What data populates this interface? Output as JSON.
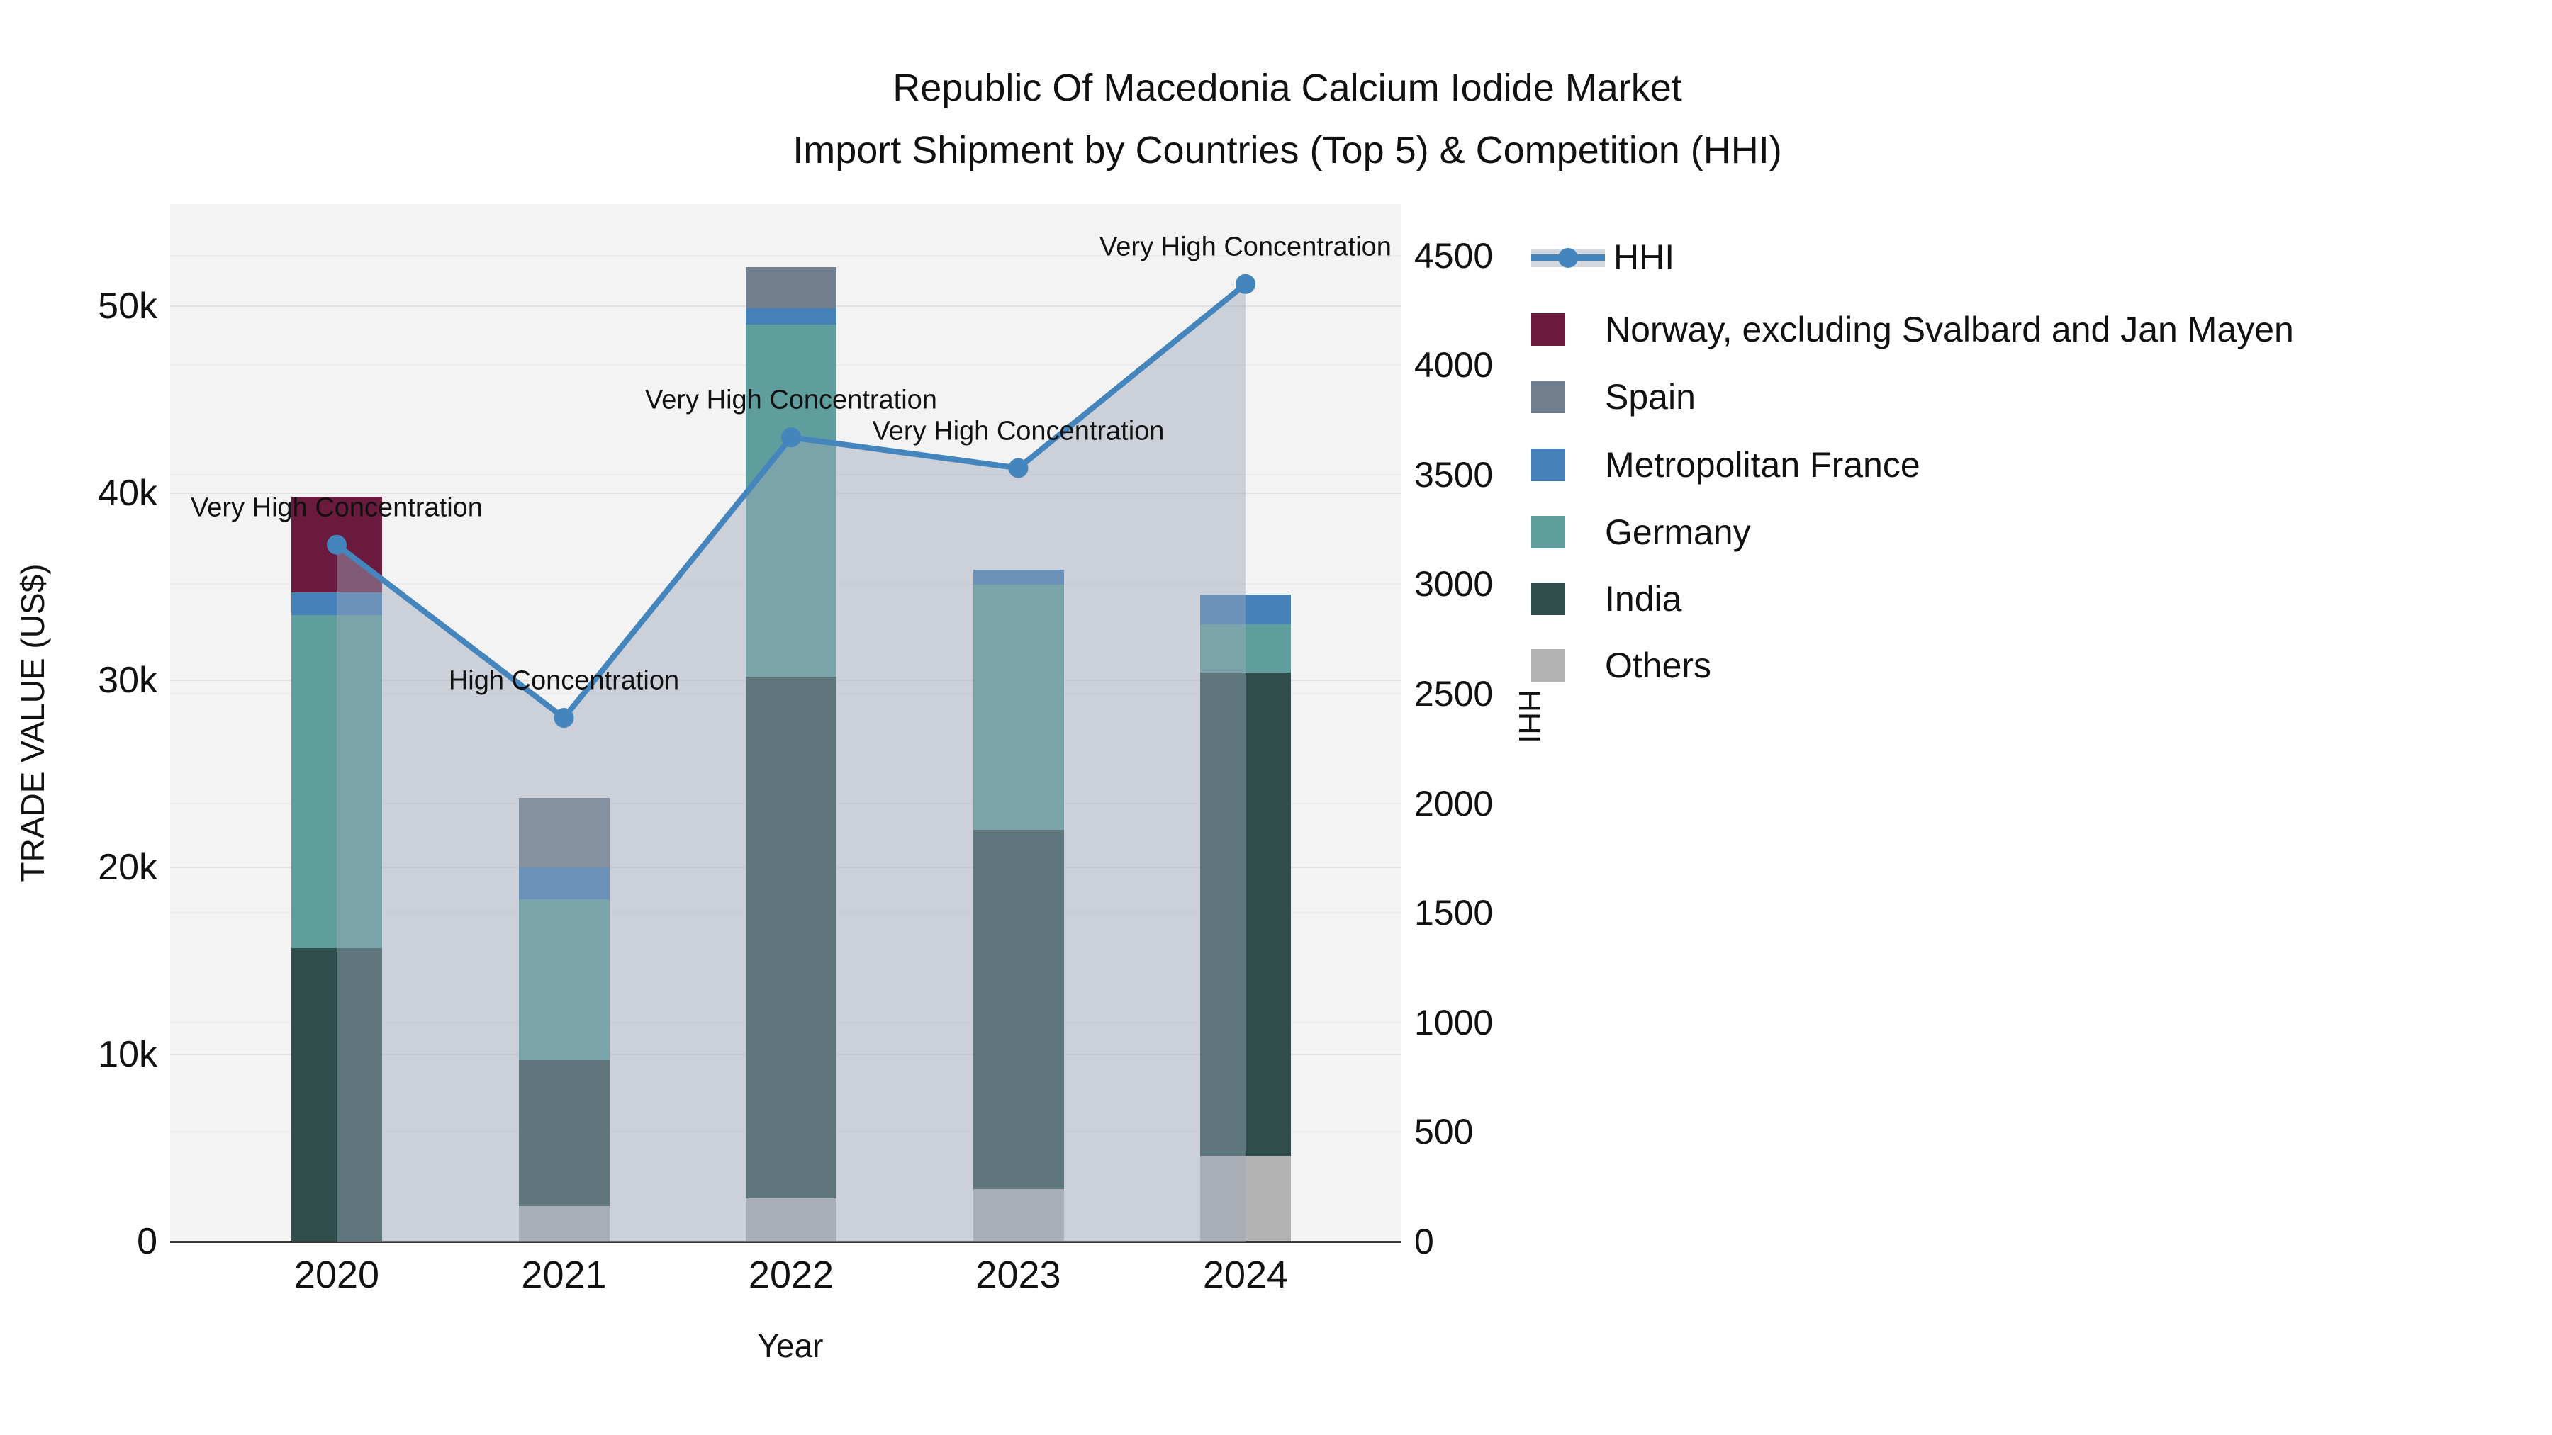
{
  "title": {
    "line1": "Republic Of Macedonia Calcium Iodide Market",
    "line2": "Import Shipment by Countries (Top 5) & Competition (HHI)"
  },
  "axes": {
    "left": {
      "title": "TRADE VALUE (US$)",
      "tick_labels": [
        "0",
        "10k",
        "20k",
        "30k",
        "40k",
        "50k"
      ],
      "tick_values": [
        0,
        10000,
        20000,
        30000,
        40000,
        50000
      ],
      "range": [
        0,
        55400
      ]
    },
    "right": {
      "title": "HHI",
      "tick_values": [
        0,
        500,
        1000,
        1500,
        2000,
        2500,
        3000,
        3500,
        4000,
        4500
      ],
      "range": [
        0,
        4735
      ]
    },
    "x": {
      "title": "Year",
      "tick_labels": [
        "2020",
        "2021",
        "2022",
        "2023",
        "2024"
      ]
    }
  },
  "legend": {
    "items": [
      {
        "label": "HHI",
        "type": "line"
      },
      {
        "label": "Norway, excluding Svalbard and Jan Mayen",
        "type": "box",
        "color": "#6a1a3c"
      },
      {
        "label": "Spain",
        "type": "box",
        "color": "#717e8d"
      },
      {
        "label": "Metropolitan France",
        "type": "box",
        "color": "#4580b8"
      },
      {
        "label": "Germany",
        "type": "box",
        "color": "#5f9e9d"
      },
      {
        "label": "India",
        "type": "box",
        "color": "#2e4d4b"
      },
      {
        "label": "Others",
        "type": "box",
        "color": "#b3b3b3"
      }
    ]
  },
  "colors": {
    "hhi_line": "#4585bd",
    "hhi_fill": "rgba(157,168,186,0.45)",
    "plot_bg": "#f3f3f3",
    "annotation_text": "#111111"
  },
  "chart_data": {
    "type": "bar",
    "subtype": "stacked-bars-with-line-overlay",
    "categories": [
      "2020",
      "2021",
      "2022",
      "2023",
      "2024"
    ],
    "bar_value_unit": "US$ trade value",
    "series": [
      {
        "name": "Norway, excluding Svalbard and Jan Mayen",
        "color": "#6a1a3c",
        "values": [
          5100,
          0,
          0,
          0,
          0
        ]
      },
      {
        "name": "Spain",
        "color": "#717e8d",
        "values": [
          0,
          3700,
          2200,
          0,
          0
        ]
      },
      {
        "name": "Metropolitan France",
        "color": "#4580b8",
        "values": [
          1200,
          1700,
          900,
          800,
          1600
        ]
      },
      {
        "name": "Germany",
        "color": "#5f9e9d",
        "values": [
          17800,
          8600,
          18800,
          13100,
          2600
        ]
      },
      {
        "name": "India",
        "color": "#2e4d4b",
        "values": [
          15700,
          7800,
          27900,
          19200,
          25800
        ]
      },
      {
        "name": "Others",
        "color": "#b3b3b3",
        "values": [
          0,
          1900,
          2300,
          2800,
          4600
        ]
      }
    ],
    "stack_order_bottom_to_top": [
      "Others",
      "India",
      "Germany",
      "Metropolitan France",
      "Spain",
      "Norway, excluding Svalbard and Jan Mayen"
    ],
    "line_series": {
      "name": "HHI",
      "axis": "right",
      "values": [
        3180,
        2390,
        3670,
        3530,
        4370
      ],
      "fill": "tozeroy"
    },
    "annotations": [
      {
        "category": "2020",
        "text": "Very High Concentration"
      },
      {
        "category": "2021",
        "text": "High Concentration"
      },
      {
        "category": "2022",
        "text": "Very High Concentration"
      },
      {
        "category": "2023",
        "text": "Very High Concentration"
      },
      {
        "category": "2024",
        "text": "Very High Concentration"
      }
    ],
    "title": "Republic Of Macedonia Calcium Iodide Market — Import Shipment by Countries (Top 5) & Competition (HHI)",
    "xlabel": "Year",
    "ylabel_left": "TRADE VALUE (US$)",
    "ylabel_right": "HHI",
    "grid": true,
    "legend_position": "right"
  }
}
